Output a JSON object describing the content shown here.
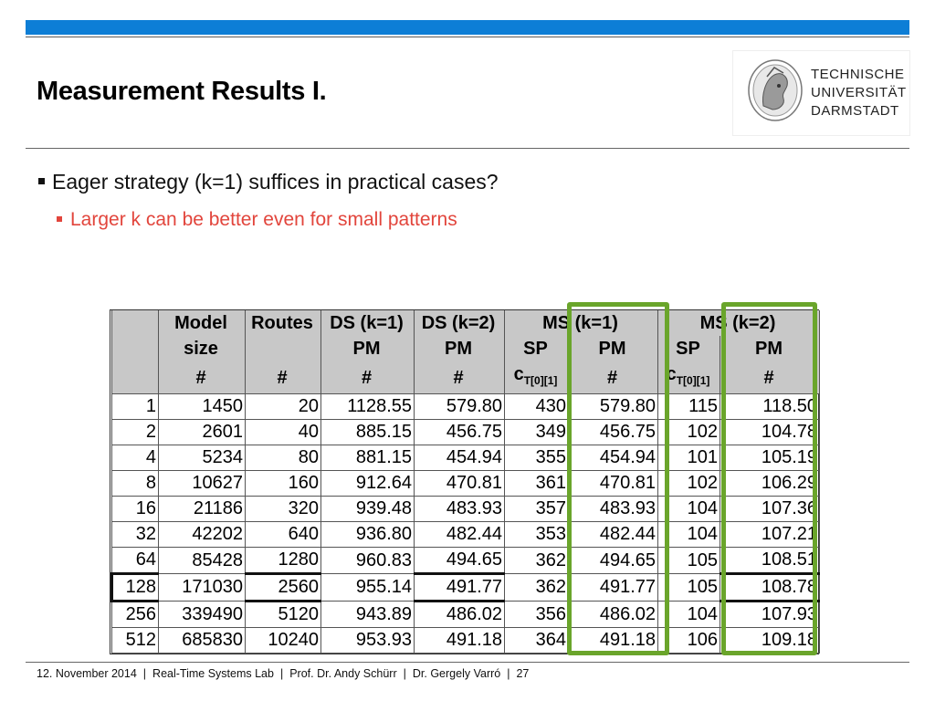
{
  "slide": {
    "title": "Measurement Results I.",
    "logo": {
      "lines": [
        "TECHNISCHE",
        "UNIVERSITÄT",
        "DARMSTADT"
      ],
      "seal_icon": "athena-seal-icon"
    },
    "bullets": [
      {
        "text": "Eager strategy (k=1) suffices in practical cases?",
        "color": "#111111"
      },
      {
        "text": "Larger k can be better even for small patterns",
        "color": "#e2453c"
      }
    ]
  },
  "table": {
    "header": {
      "row1": [
        "",
        "Model",
        "Routes",
        "DS (k=1)",
        "DS (k=2)",
        "MS (k=1)",
        "MS (k=2)"
      ],
      "row2": [
        "",
        "size",
        "",
        "PM",
        "PM",
        "SP",
        "PM",
        "SP",
        "PM"
      ],
      "row3": [
        "",
        "#",
        "#",
        "#",
        "#",
        "c",
        "#",
        "c",
        "#"
      ],
      "row3_sub": "T[0][1]"
    },
    "rows": [
      [
        "1",
        "1450",
        "20",
        "1128.55",
        "579.80",
        "430",
        "579.80",
        "115",
        "118.50"
      ],
      [
        "2",
        "2601",
        "40",
        "885.15",
        "456.75",
        "349",
        "456.75",
        "102",
        "104.78"
      ],
      [
        "4",
        "5234",
        "80",
        "881.15",
        "454.94",
        "355",
        "454.94",
        "101",
        "105.19"
      ],
      [
        "8",
        "10627",
        "160",
        "912.64",
        "470.81",
        "361",
        "470.81",
        "102",
        "106.29"
      ],
      [
        "16",
        "21186",
        "320",
        "939.48",
        "483.93",
        "357",
        "483.93",
        "104",
        "107.36"
      ],
      [
        "32",
        "42202",
        "640",
        "936.80",
        "482.44",
        "353",
        "482.44",
        "104",
        "107.21"
      ],
      [
        "64",
        "85428",
        "1280",
        "960.83",
        "494.65",
        "362",
        "494.65",
        "105",
        "108.51"
      ],
      [
        "128",
        "171030",
        "2560",
        "955.14",
        "491.77",
        "362",
        "491.77",
        "105",
        "108.78"
      ],
      [
        "256",
        "339490",
        "5120",
        "943.89",
        "486.02",
        "356",
        "486.02",
        "104",
        "107.93"
      ],
      [
        "512",
        "685830",
        "10240",
        "953.93",
        "491.18",
        "364",
        "491.18",
        "106",
        "109.18"
      ]
    ],
    "highlight_color": "#6aa52b"
  },
  "footer": {
    "date": "12. November 2014",
    "lab": "Real-Time Systems Lab",
    "author1": "Prof. Dr. Andy Schürr",
    "author2": "Dr. Gergely Varró",
    "page": "27",
    "separator": "|"
  }
}
